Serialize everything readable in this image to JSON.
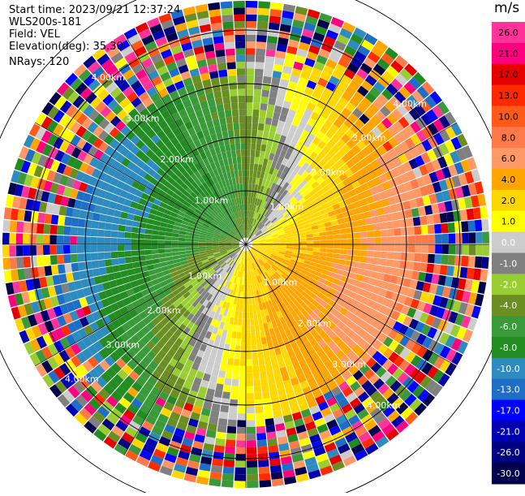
{
  "info": {
    "start_time": "Start time: 2023/09/21 12:37:24",
    "instrument": "WLS200s-181",
    "field": "Field: VEL",
    "elevation": "Elevation(deg): 35.30",
    "nrays": "NRays: 120"
  },
  "chart_data": {
    "type": "heatmap",
    "projection": "polar (PPI scan)",
    "range_rings": [
      {
        "label": "1.00km",
        "range_km": 1.0
      },
      {
        "label": "2.00km",
        "range_km": 2.0
      },
      {
        "label": "3.00km",
        "range_km": 3.0
      },
      {
        "label": "4.00km",
        "range_km": 4.0
      },
      {
        "label": "5.00km",
        "range_km": 5.0
      }
    ],
    "max_range_km": 5.0,
    "n_rays": 120,
    "colorbar": {
      "unit": "m/s",
      "tick_labels": [
        "26.0",
        "21.0",
        "17.0",
        "13.0",
        "10.0",
        "8.0",
        "6.0",
        "4.0",
        "2.0",
        "1.0",
        "0.0",
        "-1.0",
        "-2.0",
        "-4.0",
        "-6.0",
        "-8.0",
        "-10.0",
        "-13.0",
        "-17.0",
        "-21.0",
        "-26.0",
        "-30.0"
      ],
      "colors": [
        "#ff3399",
        "#ff007f",
        "#e60000",
        "#ff2a00",
        "#ff5a1a",
        "#ff7a4a",
        "#ff9966",
        "#ffa500",
        "#ffd700",
        "#ffff00",
        "#cccccc",
        "#808080",
        "#9acd32",
        "#6b8e23",
        "#3a9a3a",
        "#228b22",
        "#2e8bc0",
        "#1e6ec8",
        "#0000ff",
        "#0000b0",
        "#000080",
        "#00004d"
      ]
    },
    "velocity_field_description": {
      "positive_sector_center_deg": 110,
      "negative_sector_center_deg": 290,
      "peak_positive_ms": 8.0,
      "peak_negative_ms": -10.0
    }
  }
}
